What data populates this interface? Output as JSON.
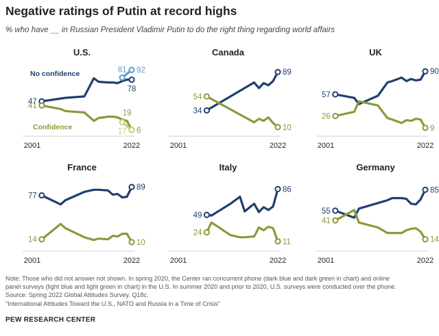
{
  "title": "Negative ratings of Putin at record highs",
  "subtitle": "% who have __ in Russian President Vladimir Putin to do the right thing regarding world affairs",
  "notes": {
    "line1": "Note: Those who did not answer not shown. In spring 2020, the Center ran concurrent phone (dark blue and dark green in chart) and online",
    "line2": "panel surveys (light blue and light green in chart) in the U.S. In summer 2020 and prior to 2020, U.S. surveys were conducted over the phone.",
    "line3": "Source: Spring 2022 Global Attitudes Survey. Q18c.",
    "line4": "“International Attitudes Toward the U.S., NATO and Russia in a Time of Crisis”"
  },
  "source_name": "PEW RESEARCH CENTER",
  "colors": {
    "no_confidence": "#1f3f6e",
    "confidence": "#8a9a3a",
    "no_confidence_online": "#5b9bd5",
    "confidence_online": "#c6cf86",
    "text_dark": "#222222",
    "axis": "#cccccc"
  },
  "chart_data": [
    {
      "type": "line",
      "title": "U.S.",
      "x_start_label": "2001",
      "x_end_label": "2022",
      "xlim": [
        2001,
        2022
      ],
      "ylim": [
        0,
        100
      ],
      "legend_labels": {
        "no_confidence": "No confidence",
        "confidence": "Confidence"
      },
      "series": [
        {
          "name": "No confidence",
          "key": "no_confidence",
          "x": [
            2003,
            2007,
            2008,
            2012,
            2014,
            2015,
            2017,
            2018,
            2019,
            2020,
            2021,
            2022
          ],
          "values": [
            47,
            51,
            52,
            54,
            80,
            75,
            74,
            74,
            73,
            76,
            78,
            78
          ]
        },
        {
          "name": "Confidence",
          "key": "confidence",
          "x": [
            2003,
            2007,
            2008,
            2012,
            2014,
            2015,
            2017,
            2018,
            2019,
            2020,
            2021,
            2022
          ],
          "values": [
            41,
            36,
            33,
            31,
            19,
            23,
            25,
            25,
            24,
            21,
            19,
            6
          ]
        },
        {
          "name": "No confidence (online)",
          "key": "no_confidence_online",
          "x": [
            2020,
            2022
          ],
          "values": [
            81,
            92
          ]
        },
        {
          "name": "Confidence (online)",
          "key": "confidence_online",
          "x": [
            2020,
            2022
          ],
          "values": [
            17,
            6
          ]
        }
      ],
      "labels": [
        {
          "text": "47",
          "series": "no_confidence",
          "point": 0,
          "side": "left"
        },
        {
          "text": "41",
          "series": "confidence",
          "point": 0,
          "side": "left"
        },
        {
          "text": "81",
          "series": "no_confidence_online",
          "point": 0,
          "side": "above"
        },
        {
          "text": "92",
          "series": "no_confidence_online",
          "point": 1,
          "side": "right"
        },
        {
          "text": "78",
          "series": "no_confidence",
          "point": 11,
          "side": "below"
        },
        {
          "text": "19",
          "series": "confidence",
          "point": 10,
          "side": "above"
        },
        {
          "text": "17",
          "series": "confidence_online",
          "point": 0,
          "side": "below"
        },
        {
          "text": "6",
          "series": "confidence",
          "point": 11,
          "side": "right"
        }
      ]
    },
    {
      "type": "line",
      "title": "Canada",
      "x_start_label": "2001",
      "x_end_label": "2022",
      "xlim": [
        2001,
        2022
      ],
      "ylim": [
        0,
        100
      ],
      "series": [
        {
          "name": "No confidence",
          "key": "no_confidence",
          "x": [
            2007,
            2017,
            2018,
            2019,
            2020,
            2021,
            2022
          ],
          "values": [
            34,
            74,
            66,
            73,
            70,
            76,
            89
          ]
        },
        {
          "name": "Confidence",
          "key": "confidence",
          "x": [
            2007,
            2017,
            2018,
            2019,
            2020,
            2021,
            2022
          ],
          "values": [
            54,
            17,
            22,
            19,
            24,
            16,
            10
          ]
        }
      ],
      "labels": [
        {
          "text": "34",
          "series": "no_confidence",
          "point": 0,
          "side": "left"
        },
        {
          "text": "54",
          "series": "confidence",
          "point": 0,
          "side": "left"
        },
        {
          "text": "89",
          "series": "no_confidence",
          "point": 6,
          "side": "right"
        },
        {
          "text": "10",
          "series": "confidence",
          "point": 6,
          "side": "right"
        }
      ]
    },
    {
      "type": "line",
      "title": "UK",
      "x_start_label": "2001",
      "x_end_label": "2022",
      "xlim": [
        2001,
        2022
      ],
      "ylim": [
        0,
        100
      ],
      "series": [
        {
          "name": "No confidence",
          "key": "no_confidence",
          "x": [
            2003,
            2007,
            2008,
            2012,
            2014,
            2015,
            2017,
            2018,
            2019,
            2020,
            2021,
            2022
          ],
          "values": [
            57,
            52,
            43,
            55,
            74,
            76,
            81,
            76,
            79,
            77,
            78,
            90
          ]
        },
        {
          "name": "Confidence",
          "key": "confidence",
          "x": [
            2003,
            2007,
            2008,
            2012,
            2014,
            2015,
            2017,
            2018,
            2019,
            2020,
            2021,
            2022
          ],
          "values": [
            26,
            32,
            47,
            41,
            23,
            21,
            16,
            20,
            19,
            22,
            21,
            9
          ]
        }
      ],
      "labels": [
        {
          "text": "57",
          "series": "no_confidence",
          "point": 0,
          "side": "left"
        },
        {
          "text": "26",
          "series": "confidence",
          "point": 0,
          "side": "left"
        },
        {
          "text": "90",
          "series": "no_confidence",
          "point": 11,
          "side": "right"
        },
        {
          "text": "9",
          "series": "confidence",
          "point": 11,
          "side": "right"
        }
      ]
    },
    {
      "type": "line",
      "title": "France",
      "x_start_label": "2001",
      "x_end_label": "2022",
      "xlim": [
        2001,
        2022
      ],
      "ylim": [
        0,
        100
      ],
      "series": [
        {
          "name": "No confidence",
          "key": "no_confidence",
          "x": [
            2003,
            2007,
            2008,
            2012,
            2014,
            2015,
            2017,
            2018,
            2019,
            2020,
            2021,
            2022
          ],
          "values": [
            77,
            64,
            70,
            82,
            85,
            85,
            84,
            78,
            79,
            74,
            75,
            89
          ]
        },
        {
          "name": "Confidence",
          "key": "confidence",
          "x": [
            2003,
            2007,
            2008,
            2012,
            2014,
            2015,
            2017,
            2018,
            2019,
            2020,
            2021,
            2022
          ],
          "values": [
            14,
            36,
            30,
            17,
            13,
            15,
            14,
            19,
            18,
            22,
            22,
            10
          ]
        }
      ],
      "labels": [
        {
          "text": "77",
          "series": "no_confidence",
          "point": 0,
          "side": "left"
        },
        {
          "text": "14",
          "series": "confidence",
          "point": 0,
          "side": "left"
        },
        {
          "text": "89",
          "series": "no_confidence",
          "point": 11,
          "side": "right"
        },
        {
          "text": "10",
          "series": "confidence",
          "point": 11,
          "side": "right"
        }
      ]
    },
    {
      "type": "line",
      "title": "Italy",
      "x_start_label": "2001",
      "x_end_label": "2022",
      "xlim": [
        2001,
        2022
      ],
      "ylim": [
        0,
        100
      ],
      "series": [
        {
          "name": "No confidence",
          "key": "no_confidence",
          "x": [
            2007,
            2008,
            2012,
            2014,
            2015,
            2017,
            2018,
            2019,
            2020,
            2021,
            2022
          ],
          "values": [
            49,
            48,
            65,
            75,
            54,
            65,
            53,
            60,
            56,
            61,
            86
          ]
        },
        {
          "name": "Confidence",
          "key": "confidence",
          "x": [
            2007,
            2008,
            2012,
            2014,
            2015,
            2017,
            2018,
            2019,
            2020,
            2021,
            2022
          ],
          "values": [
            24,
            38,
            20,
            17,
            17,
            18,
            31,
            27,
            32,
            30,
            11
          ]
        }
      ],
      "labels": [
        {
          "text": "49",
          "series": "no_confidence",
          "point": 0,
          "side": "left"
        },
        {
          "text": "24",
          "series": "confidence",
          "point": 0,
          "side": "left"
        },
        {
          "text": "86",
          "series": "no_confidence",
          "point": 10,
          "side": "right"
        },
        {
          "text": "11",
          "series": "confidence",
          "point": 10,
          "side": "right"
        }
      ]
    },
    {
      "type": "line",
      "title": "Germany",
      "x_start_label": "2001",
      "x_end_label": "2022",
      "xlim": [
        2001,
        2022
      ],
      "ylim": [
        0,
        100
      ],
      "series": [
        {
          "name": "No confidence",
          "key": "no_confidence",
          "x": [
            2003,
            2007,
            2008,
            2012,
            2014,
            2015,
            2017,
            2018,
            2019,
            2020,
            2021,
            2022
          ],
          "values": [
            55,
            45,
            58,
            66,
            70,
            73,
            73,
            72,
            65,
            64,
            71,
            85
          ]
        },
        {
          "name": "Confidence",
          "key": "confidence",
          "x": [
            2003,
            2007,
            2008,
            2012,
            2014,
            2015,
            2017,
            2018,
            2019,
            2020,
            2021,
            2022
          ],
          "values": [
            41,
            56,
            38,
            31,
            23,
            23,
            23,
            27,
            29,
            30,
            25,
            14
          ]
        }
      ],
      "labels": [
        {
          "text": "55",
          "series": "no_confidence",
          "point": 0,
          "side": "left"
        },
        {
          "text": "41",
          "series": "confidence",
          "point": 0,
          "side": "left"
        },
        {
          "text": "85",
          "series": "no_confidence",
          "point": 11,
          "side": "right"
        },
        {
          "text": "14",
          "series": "confidence",
          "point": 11,
          "side": "right"
        }
      ]
    }
  ]
}
